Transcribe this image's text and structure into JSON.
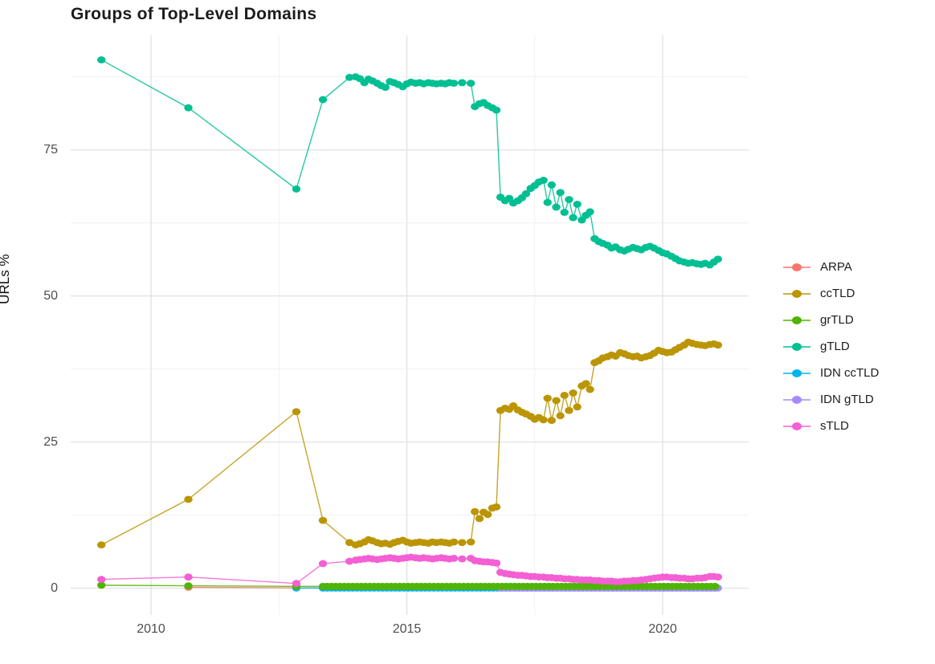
{
  "title": "Groups of Top-Level Domains",
  "chart_data": {
    "type": "scatter",
    "title": "Groups of Top-Level Domains",
    "xlabel": "",
    "ylabel": "URLs %",
    "xlim": [
      2008.43,
      2021.68
    ],
    "ylim": [
      -4.6,
      94.6
    ],
    "x_ticks": [
      {
        "value": 2010,
        "label": "2010"
      },
      {
        "value": 2015,
        "label": "2015"
      },
      {
        "value": 2020,
        "label": "2020"
      }
    ],
    "x_minor_ticks": [
      2012.5,
      2017.5
    ],
    "y_ticks": [
      {
        "value": 0,
        "label": "0"
      },
      {
        "value": 25,
        "label": "25"
      },
      {
        "value": 50,
        "label": "50"
      },
      {
        "value": 75,
        "label": "75"
      }
    ],
    "y_minor_ticks": [
      12.5,
      37.5,
      62.5,
      87.5
    ],
    "grid": true,
    "legend_position": "right",
    "panel_background": "#ffffff",
    "grid_major_color": "#e3e3e3",
    "grid_minor_color": "#f0f0f0",
    "tick_label_color": "#4e4e4e",
    "draw_order": [
      "ARPA",
      "IDN ccTLD",
      "IDN gTLD",
      "grTLD",
      "ccTLD",
      "gTLD",
      "sTLD"
    ],
    "series": [
      {
        "name": "ARPA",
        "color": "#F8766D",
        "points": [
          [
            2010.73,
            0.15
          ],
          [
            2012.84,
            0.05
          ]
        ],
        "flat_run": {
          "from": 2013.36,
          "to": 2021.08,
          "step": 0.0833,
          "value": 0.02
        }
      },
      {
        "name": "ccTLD",
        "color": "#BB9504",
        "points": [
          [
            2009.03,
            7.4
          ],
          [
            2010.73,
            15.2
          ],
          [
            2012.84,
            30.2
          ],
          [
            2013.36,
            11.6
          ],
          [
            2013.88,
            7.8
          ],
          [
            2014.0,
            7.4
          ],
          [
            2014.08,
            7.6
          ],
          [
            2014.17,
            7.9
          ],
          [
            2014.25,
            8.3
          ],
          [
            2014.33,
            8.1
          ],
          [
            2014.42,
            7.8
          ],
          [
            2014.5,
            7.6
          ],
          [
            2014.58,
            7.7
          ],
          [
            2014.67,
            7.5
          ],
          [
            2014.75,
            7.8
          ],
          [
            2014.83,
            8.0
          ],
          [
            2014.92,
            8.2
          ],
          [
            2015.0,
            7.9
          ],
          [
            2015.08,
            7.7
          ],
          [
            2015.17,
            7.8
          ],
          [
            2015.25,
            7.9
          ],
          [
            2015.33,
            7.8
          ],
          [
            2015.42,
            7.7
          ],
          [
            2015.5,
            7.9
          ],
          [
            2015.58,
            7.8
          ],
          [
            2015.67,
            7.9
          ],
          [
            2015.75,
            7.8
          ],
          [
            2015.83,
            7.7
          ],
          [
            2015.92,
            7.9
          ],
          [
            2016.08,
            7.8
          ],
          [
            2016.25,
            7.9
          ],
          [
            2016.33,
            13.1
          ],
          [
            2016.42,
            11.9
          ],
          [
            2016.5,
            13.0
          ],
          [
            2016.58,
            12.6
          ],
          [
            2016.67,
            13.7
          ],
          [
            2016.75,
            13.9
          ],
          [
            2016.83,
            30.4
          ],
          [
            2016.92,
            30.8
          ],
          [
            2017.0,
            30.6
          ],
          [
            2017.08,
            31.2
          ],
          [
            2017.17,
            30.5
          ],
          [
            2017.25,
            30.1
          ],
          [
            2017.33,
            29.8
          ],
          [
            2017.42,
            29.4
          ],
          [
            2017.5,
            28.9
          ],
          [
            2017.58,
            29.2
          ],
          [
            2017.67,
            28.8
          ],
          [
            2017.75,
            32.5
          ],
          [
            2017.83,
            28.7
          ],
          [
            2017.92,
            32.1
          ],
          [
            2018.0,
            29.5
          ],
          [
            2018.08,
            33.0
          ],
          [
            2018.17,
            30.4
          ],
          [
            2018.25,
            33.4
          ],
          [
            2018.33,
            31.0
          ],
          [
            2018.42,
            34.6
          ],
          [
            2018.5,
            35.0
          ],
          [
            2018.58,
            34.0
          ],
          [
            2018.67,
            38.6
          ],
          [
            2018.75,
            38.9
          ],
          [
            2018.83,
            39.4
          ],
          [
            2018.92,
            39.6
          ],
          [
            2019.0,
            39.9
          ],
          [
            2019.08,
            39.7
          ],
          [
            2019.17,
            40.3
          ],
          [
            2019.25,
            40.1
          ],
          [
            2019.33,
            39.8
          ],
          [
            2019.42,
            39.6
          ],
          [
            2019.5,
            39.7
          ],
          [
            2019.58,
            39.4
          ],
          [
            2019.67,
            39.6
          ],
          [
            2019.75,
            39.8
          ],
          [
            2019.83,
            40.2
          ],
          [
            2019.92,
            40.7
          ],
          [
            2020.0,
            40.5
          ],
          [
            2020.08,
            40.3
          ],
          [
            2020.17,
            40.4
          ],
          [
            2020.25,
            40.8
          ],
          [
            2020.33,
            41.2
          ],
          [
            2020.42,
            41.6
          ],
          [
            2020.5,
            42.1
          ],
          [
            2020.58,
            41.9
          ],
          [
            2020.67,
            41.7
          ],
          [
            2020.75,
            41.6
          ],
          [
            2020.83,
            41.5
          ],
          [
            2020.92,
            41.7
          ],
          [
            2021.0,
            41.8
          ],
          [
            2021.08,
            41.6
          ]
        ]
      },
      {
        "name": "grTLD",
        "color": "#4FB402",
        "points": [
          [
            2009.03,
            0.5
          ],
          [
            2010.73,
            0.4
          ],
          [
            2012.84,
            0.3
          ]
        ],
        "flat_run": {
          "from": 2013.36,
          "to": 2021.08,
          "step": 0.0833,
          "value": 0.3
        }
      },
      {
        "name": "gTLD",
        "color": "#00BF92",
        "points": [
          [
            2009.03,
            90.4
          ],
          [
            2010.73,
            82.2
          ],
          [
            2012.84,
            68.3
          ],
          [
            2013.36,
            83.6
          ],
          [
            2013.88,
            87.4
          ],
          [
            2014.0,
            87.5
          ],
          [
            2014.08,
            87.2
          ],
          [
            2014.17,
            86.5
          ],
          [
            2014.25,
            87.1
          ],
          [
            2014.33,
            86.8
          ],
          [
            2014.42,
            86.4
          ],
          [
            2014.5,
            86.0
          ],
          [
            2014.58,
            85.7
          ],
          [
            2014.67,
            86.7
          ],
          [
            2014.75,
            86.5
          ],
          [
            2014.83,
            86.2
          ],
          [
            2014.92,
            85.8
          ],
          [
            2015.0,
            86.3
          ],
          [
            2015.08,
            86.6
          ],
          [
            2015.17,
            86.4
          ],
          [
            2015.25,
            86.5
          ],
          [
            2015.33,
            86.3
          ],
          [
            2015.42,
            86.5
          ],
          [
            2015.5,
            86.4
          ],
          [
            2015.58,
            86.3
          ],
          [
            2015.67,
            86.4
          ],
          [
            2015.75,
            86.3
          ],
          [
            2015.83,
            86.5
          ],
          [
            2015.92,
            86.4
          ],
          [
            2016.08,
            86.5
          ],
          [
            2016.25,
            86.4
          ],
          [
            2016.33,
            82.4
          ],
          [
            2016.42,
            82.9
          ],
          [
            2016.5,
            83.1
          ],
          [
            2016.58,
            82.6
          ],
          [
            2016.67,
            82.2
          ],
          [
            2016.75,
            81.8
          ],
          [
            2016.83,
            66.9
          ],
          [
            2016.92,
            66.3
          ],
          [
            2017.0,
            66.7
          ],
          [
            2017.08,
            65.9
          ],
          [
            2017.17,
            66.3
          ],
          [
            2017.25,
            66.8
          ],
          [
            2017.33,
            67.5
          ],
          [
            2017.42,
            68.4
          ],
          [
            2017.5,
            68.9
          ],
          [
            2017.58,
            69.5
          ],
          [
            2017.67,
            69.8
          ],
          [
            2017.75,
            66.0
          ],
          [
            2017.83,
            69.0
          ],
          [
            2017.92,
            65.2
          ],
          [
            2018.0,
            67.7
          ],
          [
            2018.08,
            64.3
          ],
          [
            2018.17,
            66.5
          ],
          [
            2018.25,
            63.4
          ],
          [
            2018.33,
            65.7
          ],
          [
            2018.42,
            63.0
          ],
          [
            2018.5,
            63.8
          ],
          [
            2018.58,
            64.4
          ],
          [
            2018.67,
            59.8
          ],
          [
            2018.75,
            59.3
          ],
          [
            2018.83,
            59.0
          ],
          [
            2018.92,
            58.7
          ],
          [
            2019.0,
            58.2
          ],
          [
            2019.08,
            58.4
          ],
          [
            2019.17,
            57.9
          ],
          [
            2019.25,
            57.7
          ],
          [
            2019.33,
            58.0
          ],
          [
            2019.42,
            58.3
          ],
          [
            2019.5,
            58.1
          ],
          [
            2019.58,
            57.9
          ],
          [
            2019.67,
            58.3
          ],
          [
            2019.75,
            58.5
          ],
          [
            2019.83,
            58.2
          ],
          [
            2019.92,
            57.8
          ],
          [
            2020.0,
            57.4
          ],
          [
            2020.08,
            57.2
          ],
          [
            2020.17,
            56.8
          ],
          [
            2020.25,
            56.4
          ],
          [
            2020.33,
            56.0
          ],
          [
            2020.42,
            55.8
          ],
          [
            2020.5,
            55.6
          ],
          [
            2020.58,
            55.7
          ],
          [
            2020.67,
            55.5
          ],
          [
            2020.75,
            55.4
          ],
          [
            2020.83,
            55.6
          ],
          [
            2020.92,
            55.3
          ],
          [
            2021.0,
            55.8
          ],
          [
            2021.08,
            56.3
          ]
        ]
      },
      {
        "name": "IDN ccTLD",
        "color": "#00B6EB",
        "points": [
          [
            2012.84,
            0.02
          ]
        ],
        "flat_run": {
          "from": 2013.36,
          "to": 2021.08,
          "step": 0.0833,
          "value": 0.02
        }
      },
      {
        "name": "IDN gTLD",
        "color": "#A58AFF",
        "points": [],
        "flat_run": {
          "from": 2016.83,
          "to": 2021.08,
          "step": 0.0833,
          "value": 0.02
        }
      },
      {
        "name": "sTLD",
        "color": "#F45FD4",
        "points": [
          [
            2009.03,
            1.5
          ],
          [
            2010.73,
            1.9
          ],
          [
            2012.84,
            0.8
          ],
          [
            2013.36,
            4.2
          ],
          [
            2013.88,
            4.6
          ],
          [
            2014.0,
            4.8
          ],
          [
            2014.08,
            4.9
          ],
          [
            2014.17,
            5.0
          ],
          [
            2014.25,
            5.1
          ],
          [
            2014.33,
            5.0
          ],
          [
            2014.42,
            4.9
          ],
          [
            2014.5,
            5.0
          ],
          [
            2014.58,
            5.1
          ],
          [
            2014.67,
            5.2
          ],
          [
            2014.75,
            5.1
          ],
          [
            2014.83,
            5.0
          ],
          [
            2014.92,
            5.1
          ],
          [
            2015.0,
            5.2
          ],
          [
            2015.08,
            5.3
          ],
          [
            2015.17,
            5.2
          ],
          [
            2015.25,
            5.1
          ],
          [
            2015.33,
            5.2
          ],
          [
            2015.42,
            5.1
          ],
          [
            2015.5,
            5.0
          ],
          [
            2015.58,
            5.1
          ],
          [
            2015.67,
            5.2
          ],
          [
            2015.75,
            5.1
          ],
          [
            2015.83,
            5.0
          ],
          [
            2015.92,
            5.1
          ],
          [
            2016.08,
            5.0
          ],
          [
            2016.25,
            5.1
          ],
          [
            2016.33,
            4.7
          ],
          [
            2016.42,
            4.6
          ],
          [
            2016.5,
            4.5
          ],
          [
            2016.58,
            4.5
          ],
          [
            2016.67,
            4.4
          ],
          [
            2016.75,
            4.3
          ],
          [
            2016.83,
            2.7
          ],
          [
            2016.92,
            2.5
          ],
          [
            2017.0,
            2.4
          ],
          [
            2017.08,
            2.3
          ],
          [
            2017.17,
            2.2
          ],
          [
            2017.25,
            2.2
          ],
          [
            2017.33,
            2.1
          ],
          [
            2017.42,
            2.0
          ],
          [
            2017.5,
            2.0
          ],
          [
            2017.58,
            1.9
          ],
          [
            2017.67,
            1.9
          ],
          [
            2017.75,
            1.8
          ],
          [
            2017.83,
            1.8
          ],
          [
            2017.92,
            1.7
          ],
          [
            2018.0,
            1.7
          ],
          [
            2018.08,
            1.6
          ],
          [
            2018.17,
            1.6
          ],
          [
            2018.25,
            1.5
          ],
          [
            2018.33,
            1.5
          ],
          [
            2018.42,
            1.4
          ],
          [
            2018.5,
            1.4
          ],
          [
            2018.58,
            1.4
          ],
          [
            2018.67,
            1.3
          ],
          [
            2018.75,
            1.3
          ],
          [
            2018.83,
            1.2
          ],
          [
            2018.92,
            1.2
          ],
          [
            2019.0,
            1.2
          ],
          [
            2019.08,
            1.1
          ],
          [
            2019.17,
            1.1
          ],
          [
            2019.25,
            1.2
          ],
          [
            2019.33,
            1.2
          ],
          [
            2019.42,
            1.3
          ],
          [
            2019.5,
            1.3
          ],
          [
            2019.58,
            1.4
          ],
          [
            2019.67,
            1.5
          ],
          [
            2019.75,
            1.6
          ],
          [
            2019.83,
            1.7
          ],
          [
            2019.92,
            1.8
          ],
          [
            2020.0,
            1.9
          ],
          [
            2020.08,
            1.9
          ],
          [
            2020.17,
            1.8
          ],
          [
            2020.25,
            1.8
          ],
          [
            2020.33,
            1.7
          ],
          [
            2020.42,
            1.7
          ],
          [
            2020.5,
            1.6
          ],
          [
            2020.58,
            1.6
          ],
          [
            2020.67,
            1.7
          ],
          [
            2020.75,
            1.7
          ],
          [
            2020.83,
            1.8
          ],
          [
            2020.92,
            2.0
          ],
          [
            2021.0,
            2.0
          ],
          [
            2021.08,
            1.9
          ]
        ]
      }
    ]
  }
}
